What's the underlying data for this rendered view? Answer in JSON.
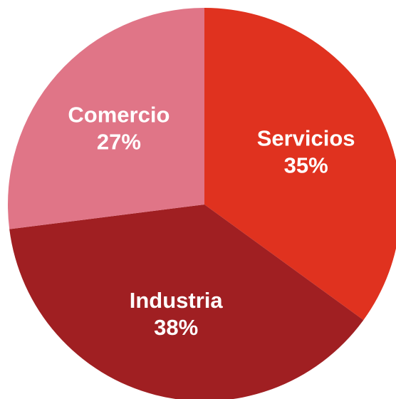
{
  "chart_data": {
    "type": "pie",
    "categories": [
      "Servicios",
      "Industria",
      "Comercio"
    ],
    "values": [
      35,
      38,
      27
    ],
    "value_labels": [
      "35%",
      "38%",
      "27%"
    ],
    "colors": [
      "#e0321f",
      "#a01f22",
      "#e07587"
    ]
  }
}
